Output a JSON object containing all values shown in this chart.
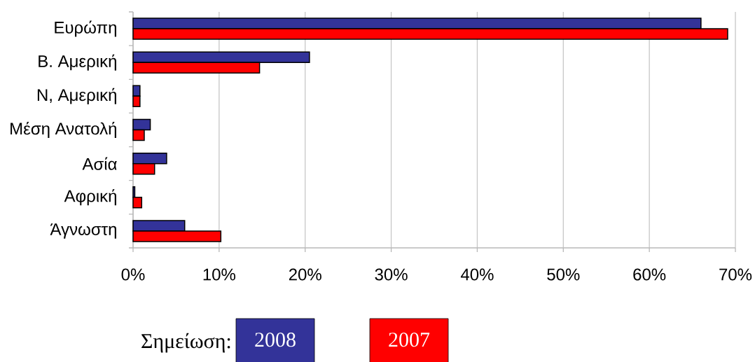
{
  "chart_data": {
    "type": "bar",
    "orientation": "horizontal",
    "categories": [
      "Ευρώπη",
      "Β. Αμερική",
      "Ν, Αμερική",
      "Μέση Ανατολή",
      "Ασία",
      "Αφρική",
      "Άγνωστη"
    ],
    "series": [
      {
        "name": "2008",
        "color": "#333399",
        "values": [
          66.0,
          20.5,
          0.8,
          2.0,
          3.9,
          0.2,
          6.0
        ]
      },
      {
        "name": "2007",
        "color": "#ff0000",
        "values": [
          69.1,
          14.7,
          0.8,
          1.3,
          2.5,
          1.0,
          10.2
        ]
      }
    ],
    "xlim": [
      0,
      70
    ],
    "xticks": [
      {
        "value": 0,
        "label": "0%"
      },
      {
        "value": 10,
        "label": "10%"
      },
      {
        "value": 20,
        "label": "20%"
      },
      {
        "value": 30,
        "label": "30%"
      },
      {
        "value": 40,
        "label": "40%"
      },
      {
        "value": 50,
        "label": "50%"
      },
      {
        "value": 60,
        "label": "60%"
      },
      {
        "value": 70,
        "label": "70%"
      }
    ],
    "grid": "x",
    "legend": "bottom",
    "legend_title": "Σημείωση:"
  }
}
